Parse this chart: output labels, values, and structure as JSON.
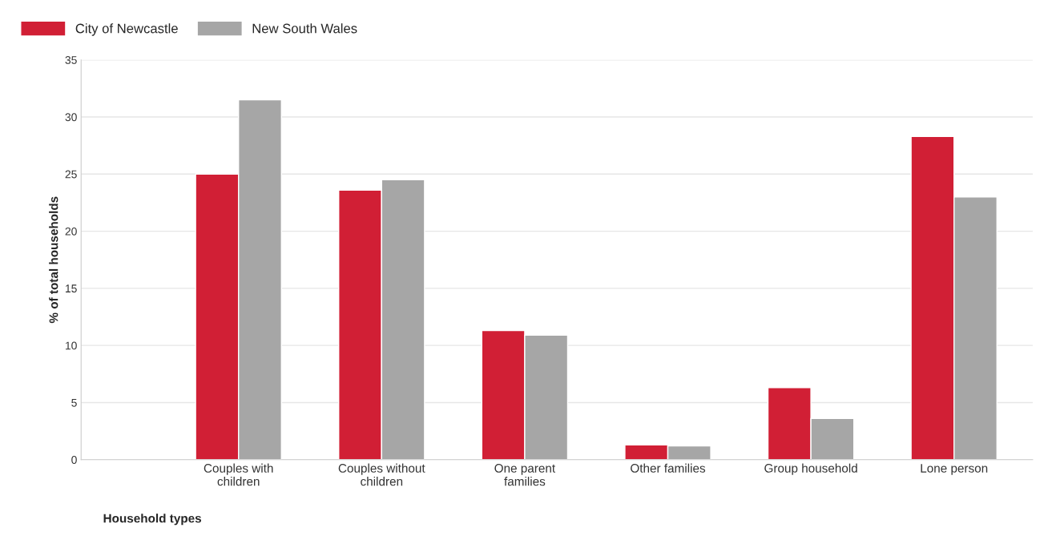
{
  "chart_data": {
    "type": "bar",
    "categories": [
      "Couples with\nchildren",
      "Couples without\nchildren",
      "One parent\nfamilies",
      "Other families",
      "Group household",
      "Lone person"
    ],
    "series": [
      {
        "name": "City of Newcastle",
        "color": "#d11f35",
        "values": [
          25.0,
          23.6,
          11.3,
          1.3,
          6.3,
          28.3
        ]
      },
      {
        "name": "New South Wales",
        "color": "#a6a6a6",
        "values": [
          31.5,
          24.5,
          10.9,
          1.2,
          3.6,
          23.0
        ]
      }
    ],
    "xlabel": "Household types",
    "ylabel": "% of total households",
    "ylim": [
      0,
      35
    ],
    "yticks": [
      0,
      5,
      10,
      15,
      20,
      25,
      30,
      35
    ],
    "grid": "y",
    "legend": "top left"
  }
}
